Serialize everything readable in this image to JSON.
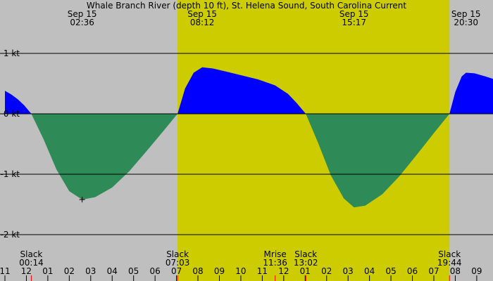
{
  "chart_data": {
    "type": "area",
    "title": "Whale Branch River (depth 10 ft), St. Helena Sound, South Carolina Current",
    "y_unit": "kt",
    "ylim": [
      -2.4,
      1.85
    ],
    "y_ticks": [
      {
        "value": 1,
        "label": "1 kt"
      },
      {
        "value": 0,
        "label": "0 kt"
      },
      {
        "value": -1,
        "label": "-1 kt"
      },
      {
        "value": -2,
        "label": "-2 kt"
      }
    ],
    "x_start_hour": 11.0,
    "x_end_hour": 34.0,
    "hour_ticks": [
      "11",
      "12",
      "01",
      "02",
      "03",
      "04",
      "05",
      "06",
      "07",
      "08",
      "09",
      "10",
      "11",
      "12",
      "01",
      "02",
      "03",
      "04",
      "05",
      "06",
      "07",
      "08",
      "09"
    ],
    "daylight": {
      "start_hour": 19.05,
      "end_hour": 31.73
    },
    "colors": {
      "flood": "#0000ff",
      "ebb": "#2e8b57",
      "night": "#bfbfbf",
      "day": "#cccc00"
    },
    "peaks": [
      {
        "date": "Sep 15",
        "time": "02:36",
        "hour": 14.6,
        "value": -1.42,
        "mark": true
      },
      {
        "date": "Sep 15",
        "time": "08:12",
        "hour": 20.2,
        "value": 0.77
      },
      {
        "date": "Sep 15",
        "time": "15:17",
        "hour": 27.28,
        "value": -1.55
      },
      {
        "date": "Sep 15",
        "time": "20:30",
        "hour": 32.5,
        "value": 0.68
      }
    ],
    "events": [
      {
        "label": "Slack",
        "time": "00:14",
        "hour": 12.23
      },
      {
        "label": "Slack",
        "time": "07:03",
        "hour": 19.05
      },
      {
        "label": "Mrise",
        "time": "11:36",
        "hour": 23.6
      },
      {
        "label": "Slack",
        "time": "13:02",
        "hour": 25.03
      },
      {
        "label": "Slack",
        "time": "19:44",
        "hour": 31.73
      }
    ],
    "series": [
      {
        "type": "flood",
        "points": [
          [
            11.0,
            0.38
          ],
          [
            11.3,
            0.32
          ],
          [
            11.6,
            0.24
          ],
          [
            11.9,
            0.14
          ],
          [
            12.23,
            0
          ]
        ]
      },
      {
        "type": "ebb",
        "points": [
          [
            12.23,
            0
          ],
          [
            12.8,
            -0.42
          ],
          [
            13.4,
            -0.92
          ],
          [
            14.0,
            -1.28
          ],
          [
            14.6,
            -1.42
          ],
          [
            15.2,
            -1.38
          ],
          [
            16.0,
            -1.22
          ],
          [
            16.8,
            -0.95
          ],
          [
            17.6,
            -0.62
          ],
          [
            18.4,
            -0.28
          ],
          [
            19.05,
            0
          ]
        ]
      },
      {
        "type": "flood",
        "points": [
          [
            19.05,
            0
          ],
          [
            19.4,
            0.42
          ],
          [
            19.8,
            0.68
          ],
          [
            20.2,
            0.77
          ],
          [
            20.7,
            0.75
          ],
          [
            21.3,
            0.7
          ],
          [
            22.0,
            0.64
          ],
          [
            22.8,
            0.57
          ],
          [
            23.6,
            0.47
          ],
          [
            24.2,
            0.33
          ],
          [
            24.6,
            0.18
          ],
          [
            25.03,
            0
          ]
        ]
      },
      {
        "type": "ebb",
        "points": [
          [
            25.03,
            0
          ],
          [
            25.6,
            -0.48
          ],
          [
            26.2,
            -1.02
          ],
          [
            26.8,
            -1.4
          ],
          [
            27.28,
            -1.55
          ],
          [
            27.8,
            -1.52
          ],
          [
            28.6,
            -1.33
          ],
          [
            29.4,
            -1.03
          ],
          [
            30.2,
            -0.68
          ],
          [
            31.0,
            -0.32
          ],
          [
            31.73,
            0
          ]
        ]
      },
      {
        "type": "flood",
        "points": [
          [
            31.73,
            0
          ],
          [
            32.0,
            0.36
          ],
          [
            32.3,
            0.62
          ],
          [
            32.5,
            0.68
          ],
          [
            32.9,
            0.67
          ],
          [
            33.4,
            0.62
          ],
          [
            34.0,
            0.55
          ]
        ]
      }
    ]
  }
}
